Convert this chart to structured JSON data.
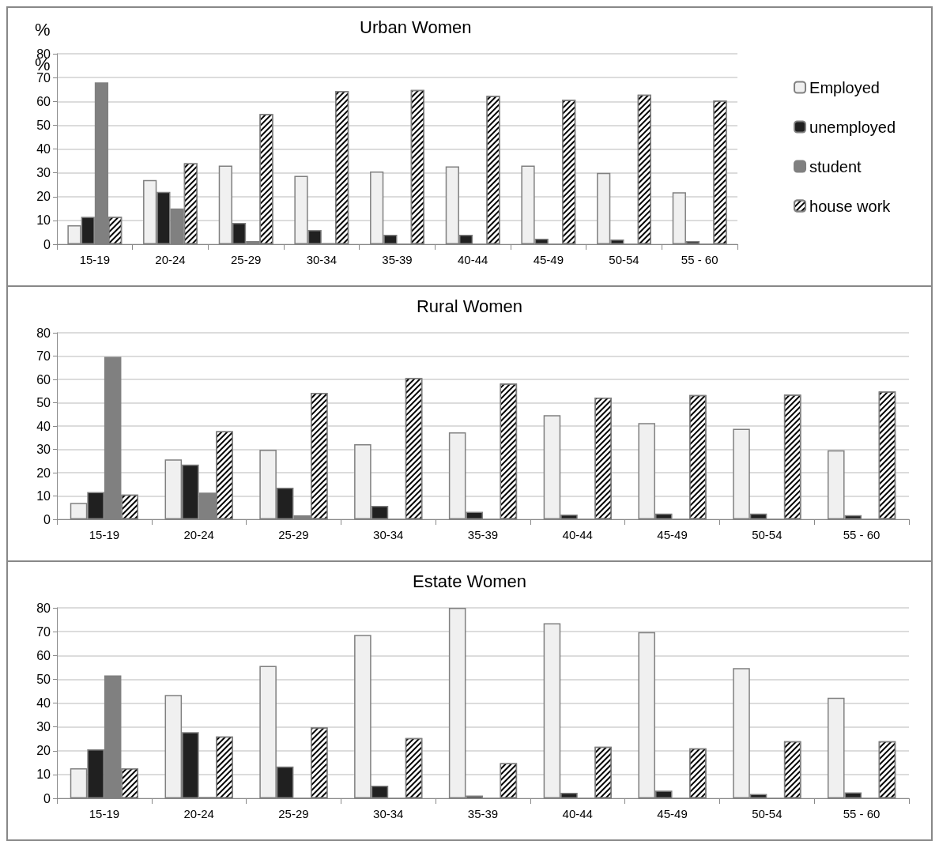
{
  "chart_data": [
    {
      "type": "bar",
      "title": "Urban Women",
      "ylabel": "%",
      "annotations": [
        "%"
      ],
      "categories": [
        "15-19",
        "20-24",
        "25-29",
        "30-34",
        "35-39",
        "40-44",
        "45-49",
        "50-54",
        "55 - 60"
      ],
      "ylim": [
        0,
        80
      ],
      "yticks": [
        0,
        10,
        20,
        30,
        40,
        50,
        60,
        70,
        80
      ],
      "grid": "y",
      "legend": "right",
      "series": [
        {
          "name": "Employed",
          "color": "#f0f0f0",
          "values": [
            8,
            27,
            33,
            28.7,
            30.5,
            32.7,
            33,
            30,
            21.8
          ]
        },
        {
          "name": "unemployed",
          "color": "#202020",
          "values": [
            11.5,
            22,
            9,
            6,
            4,
            4,
            2.3,
            2,
            1.3
          ]
        },
        {
          "name": "student",
          "color": "#808080",
          "values": [
            68,
            15,
            1.3,
            0.5,
            0,
            0,
            0,
            0,
            0
          ]
        },
        {
          "name": "house work",
          "color": "#ffffff",
          "values": [
            11.5,
            34,
            54.7,
            64.3,
            64.8,
            62.3,
            60.7,
            62.8,
            60.3
          ]
        }
      ]
    },
    {
      "type": "bar",
      "title": "Rural Women",
      "categories": [
        "15-19",
        "20-24",
        "25-29",
        "30-34",
        "35-39",
        "40-44",
        "45-49",
        "50-54",
        "55 - 60"
      ],
      "ylim": [
        0,
        80
      ],
      "yticks": [
        0,
        10,
        20,
        30,
        40,
        50,
        60,
        70,
        80
      ],
      "grid": "y",
      "series": [
        {
          "color": "#f0f0f0",
          "values": [
            7,
            25.7,
            29.8,
            32.2,
            37.3,
            44.7,
            41.3,
            38.8,
            29.6
          ]
        },
        {
          "color": "#202020",
          "values": [
            11.7,
            23.5,
            13.6,
            5.8,
            3.2,
            2,
            2.5,
            2.5,
            1.8
          ]
        },
        {
          "color": "#808080",
          "values": [
            69.7,
            11.4,
            1.7,
            0,
            0,
            0,
            0,
            0,
            0
          ]
        },
        {
          "color": "#ffffff",
          "values": [
            10.6,
            37.8,
            54.2,
            60.6,
            58.2,
            52.2,
            53.3,
            53.5,
            54.8
          ]
        }
      ]
    },
    {
      "type": "bar",
      "title": "Estate Women",
      "categories": [
        "15-19",
        "20-24",
        "25-29",
        "30-34",
        "35-39",
        "40-44",
        "45-49",
        "50-54",
        "55 - 60"
      ],
      "ylim": [
        0,
        80
      ],
      "yticks": [
        0,
        10,
        20,
        30,
        40,
        50,
        60,
        70,
        80
      ],
      "grid": "y",
      "series": [
        {
          "color": "#f0f0f0",
          "values": [
            12.6,
            43.4,
            55.6,
            68.6,
            80,
            73.5,
            69.8,
            54.7,
            42.2
          ]
        },
        {
          "color": "#202020",
          "values": [
            20.6,
            27.8,
            13.4,
            5.3,
            1.2,
            2.3,
            3.2,
            1.8,
            2.5
          ]
        },
        {
          "color": "#808080",
          "values": [
            51.6,
            0.6,
            0,
            0,
            0,
            0,
            0,
            0,
            0
          ]
        },
        {
          "color": "#ffffff",
          "values": [
            12.6,
            26,
            29.8,
            25.3,
            14.8,
            21.7,
            21,
            24,
            24
          ]
        }
      ]
    }
  ]
}
